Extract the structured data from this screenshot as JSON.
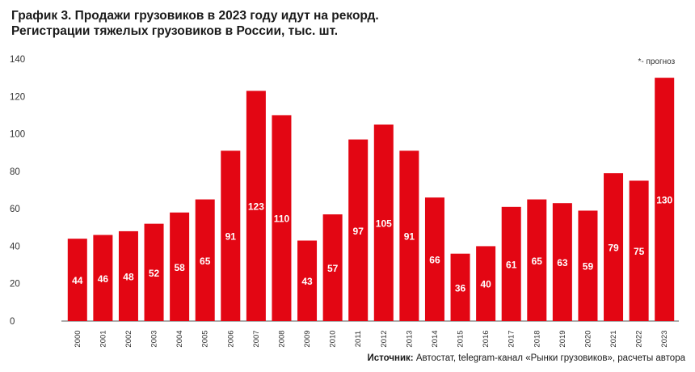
{
  "title_line1": "График 3. Продажи грузовиков в 2023 году идут на рекорд.",
  "title_line2": "Регистрации тяжелых грузовиков в России, тыс. шт.",
  "source_label": "Источник:",
  "source_text": " Автостат, telegram-канал «Рынки грузовиков», расчеты автора",
  "chart_data": {
    "type": "bar",
    "categories": [
      "2000",
      "2001",
      "2002",
      "2003",
      "2004",
      "2005",
      "2006",
      "2007",
      "2008",
      "2009",
      "2010",
      "2011",
      "2012",
      "2013",
      "2014",
      "2015",
      "2016",
      "2017",
      "2018",
      "2019",
      "2020",
      "2021",
      "2022",
      "2023"
    ],
    "values": [
      44,
      46,
      48,
      52,
      58,
      65,
      91,
      123,
      110,
      43,
      57,
      97,
      105,
      91,
      66,
      36,
      40,
      61,
      65,
      63,
      59,
      79,
      75,
      130
    ],
    "y_ticks": [
      0,
      20,
      40,
      60,
      80,
      100,
      120,
      140
    ],
    "ylim": [
      0,
      140
    ],
    "annotation": "*- прогноз",
    "grid": false,
    "bar_color": "#e30613",
    "label_color": "#ffffff"
  }
}
